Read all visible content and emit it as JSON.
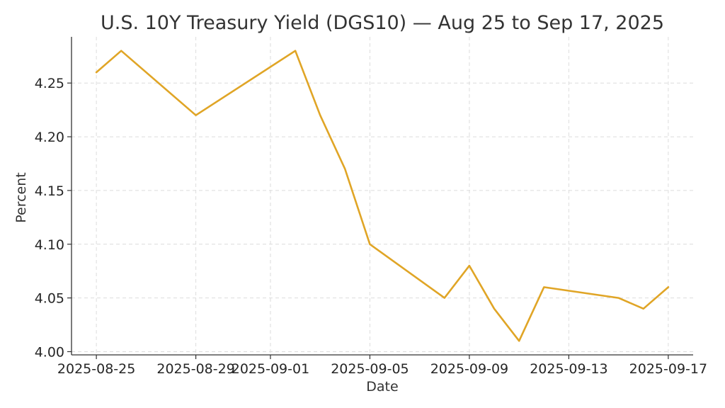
{
  "chart_data": {
    "type": "line",
    "title": "U.S. 10Y Treasury Yield (DGS10) — Aug 25 to Sep 17, 2025",
    "xlabel": "Date",
    "ylabel": "Percent",
    "x_ticks": [
      "2025-08-25",
      "2025-08-29",
      "2025-09-01",
      "2025-09-05",
      "2025-09-09",
      "2025-09-13",
      "2025-09-17"
    ],
    "y_ticks": [
      4.0,
      4.05,
      4.1,
      4.15,
      4.2,
      4.25
    ],
    "ylim": [
      3.997,
      4.293
    ],
    "xlim": [
      "2025-08-24",
      "2025-09-18"
    ],
    "grid": true,
    "color": "#e0a526",
    "x": [
      "2025-08-25",
      "2025-08-26",
      "2025-08-29",
      "2025-09-02",
      "2025-09-03",
      "2025-09-04",
      "2025-09-05",
      "2025-09-08",
      "2025-09-09",
      "2025-09-10",
      "2025-09-11",
      "2025-09-12",
      "2025-09-15",
      "2025-09-16",
      "2025-09-17"
    ],
    "values": [
      4.26,
      4.28,
      4.22,
      4.28,
      4.22,
      4.17,
      4.1,
      4.05,
      4.08,
      4.04,
      4.01,
      4.06,
      4.05,
      4.04,
      4.06
    ]
  }
}
